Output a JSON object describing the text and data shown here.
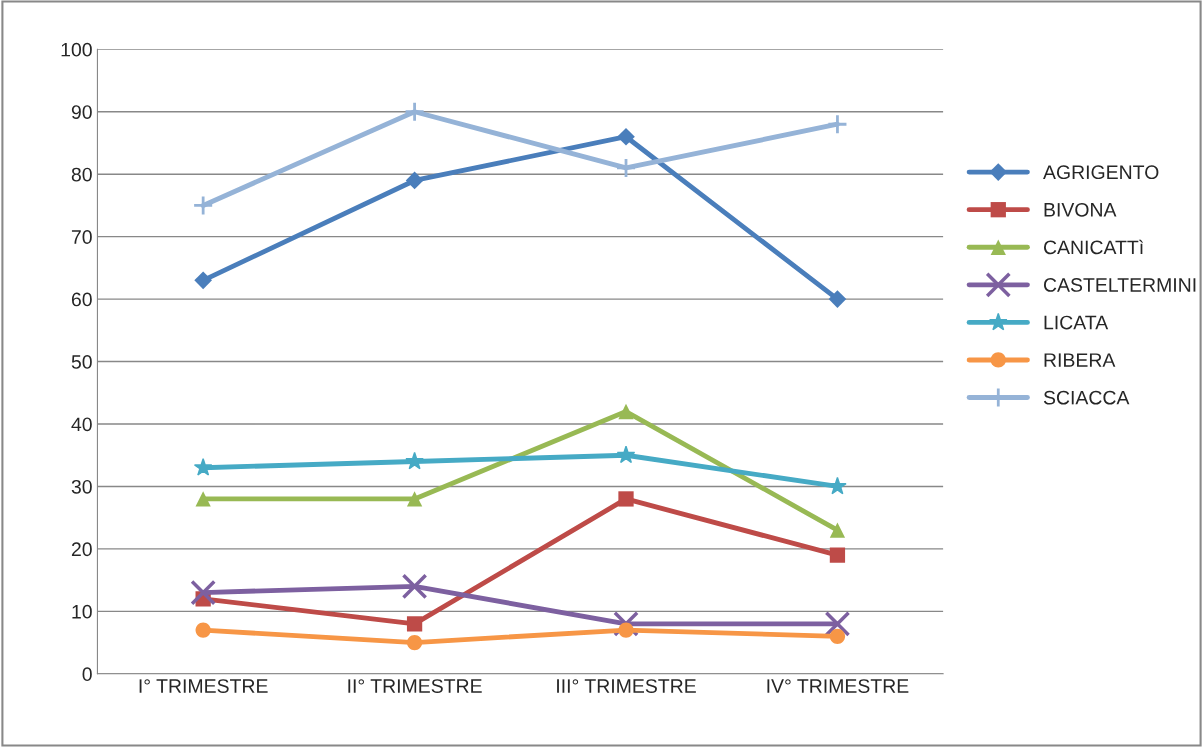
{
  "chart_data": {
    "type": "line",
    "categories": [
      "I° TRIMESTRE",
      "II° TRIMESTRE",
      "III° TRIMESTRE",
      "IV° TRIMESTRE"
    ],
    "series": [
      {
        "name": "AGRIGENTO",
        "color": "#4a7ebb",
        "marker": "diamond",
        "values": [
          63,
          79,
          86,
          60
        ]
      },
      {
        "name": "BIVONA",
        "color": "#be4b48",
        "marker": "square",
        "values": [
          12,
          8,
          28,
          19
        ]
      },
      {
        "name": "CANICATTì",
        "color": "#98b954",
        "marker": "triangle",
        "values": [
          28,
          28,
          42,
          23
        ]
      },
      {
        "name": "CASTELTERMINI",
        "color": "#7d60a0",
        "marker": "cross",
        "values": [
          13,
          14,
          8,
          8
        ]
      },
      {
        "name": "LICATA",
        "color": "#46aac5",
        "marker": "star",
        "values": [
          33,
          34,
          35,
          30
        ]
      },
      {
        "name": "RIBERA",
        "color": "#f79646",
        "marker": "circle",
        "values": [
          7,
          5,
          7,
          6
        ]
      },
      {
        "name": "SCIACCA",
        "color": "#95b3d7",
        "marker": "plus",
        "values": [
          75,
          90,
          81,
          88
        ]
      }
    ],
    "ylim": [
      0,
      100
    ],
    "yticks": [
      0,
      10,
      20,
      30,
      40,
      50,
      60,
      70,
      80,
      90,
      100
    ],
    "grid": "y",
    "legend": "right"
  }
}
